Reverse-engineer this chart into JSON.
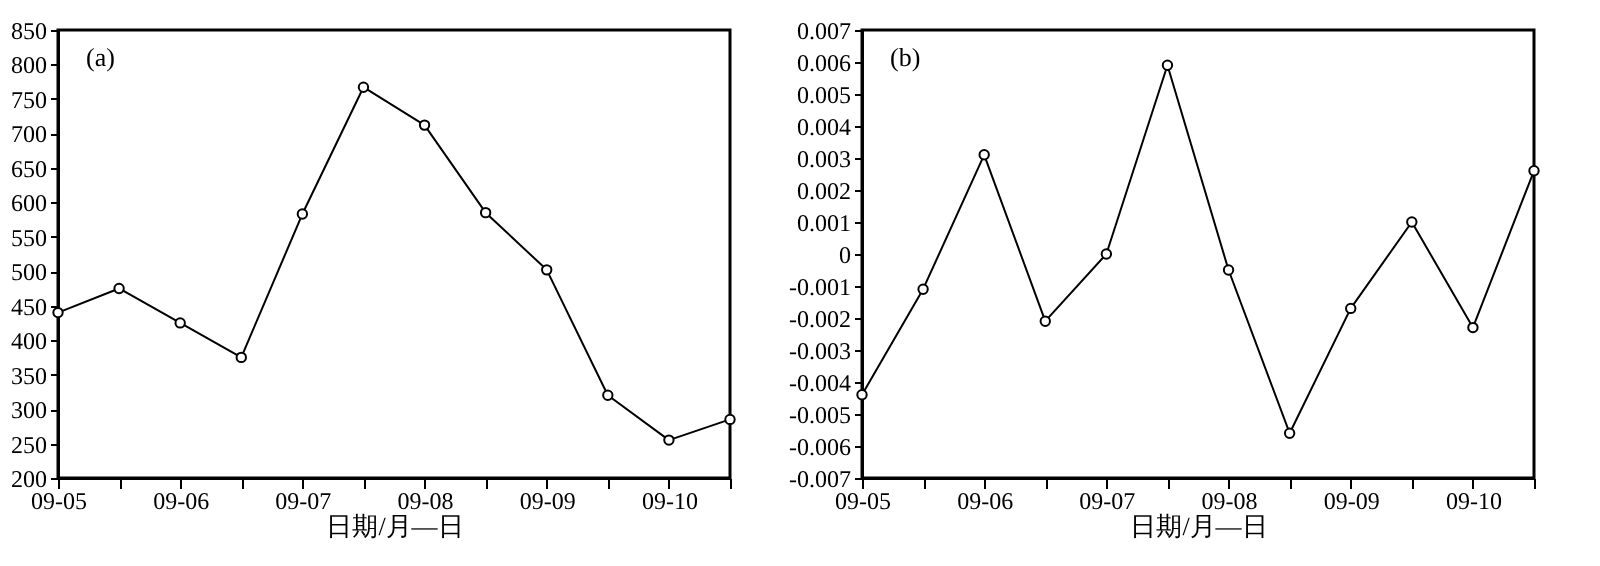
{
  "chart_data": [
    {
      "type": "line",
      "xlabel": "日期/月—日",
      "annotations": [
        "(a)"
      ],
      "marker": "circle",
      "categories": [
        "09-05",
        null,
        "09-06",
        null,
        "09-07",
        null,
        "09-08",
        null,
        "09-09",
        null,
        "09-10",
        null
      ],
      "series": [
        {
          "color": "#000000",
          "values": [
            440,
            475,
            425,
            375,
            583,
            767,
            712,
            585,
            502,
            320,
            255,
            285
          ]
        }
      ],
      "ylim": [
        200,
        850
      ],
      "yticks": [
        200,
        250,
        300,
        350,
        400,
        450,
        500,
        550,
        600,
        650,
        700,
        750,
        800,
        850
      ]
    },
    {
      "type": "line",
      "xlabel": "日期/月—日",
      "annotations": [
        "(b)"
      ],
      "marker": "circle",
      "categories": [
        "09-05",
        null,
        "09-06",
        null,
        "09-07",
        null,
        "09-08",
        null,
        "09-09",
        null,
        "09-10",
        null
      ],
      "series": [
        {
          "color": "#000000",
          "values": [
            -0.0044,
            -0.0011,
            0.0031,
            -0.0021,
            0,
            0.0059,
            -0.0005,
            -0.0056,
            -0.0017,
            0.001,
            -0.0023,
            0.0026
          ]
        }
      ],
      "ylim": [
        -0.007,
        0.007
      ],
      "yticks": [
        -0.007,
        -0.006,
        -0.005,
        -0.004,
        -0.003,
        -0.002,
        -0.001,
        0,
        0.001,
        0.002,
        0.003,
        0.004,
        0.005,
        0.006,
        0.007
      ]
    }
  ]
}
